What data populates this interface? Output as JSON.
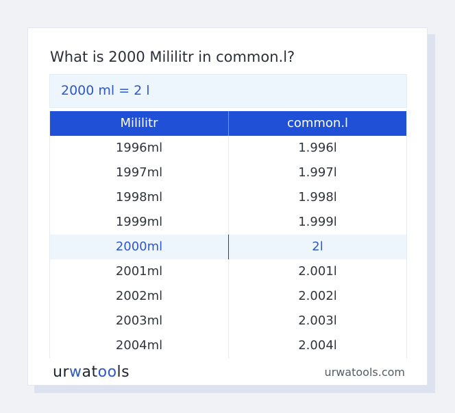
{
  "title": "What is 2000 Mililitr in common.l?",
  "answer": "2000 ml = 2 l",
  "table": {
    "headers": [
      "Mililitr",
      "common.l"
    ],
    "rows": [
      [
        "1996ml",
        "1.996l"
      ],
      [
        "1997ml",
        "1.997l"
      ],
      [
        "1998ml",
        "1.998l"
      ],
      [
        "1999ml",
        "1.999l"
      ],
      [
        "2000ml",
        "2l"
      ],
      [
        "2001ml",
        "2.001l"
      ],
      [
        "2002ml",
        "2.002l"
      ],
      [
        "2003ml",
        "2.003l"
      ],
      [
        "2004ml",
        "2.004l"
      ]
    ],
    "highlight_row": 4
  },
  "brand": {
    "logo_parts": [
      "ur",
      "w",
      "at",
      "oo",
      "ls"
    ],
    "domain": "urwatools.com",
    "accent_color": "#2e57c8",
    "header_color": "#1f50d6"
  }
}
